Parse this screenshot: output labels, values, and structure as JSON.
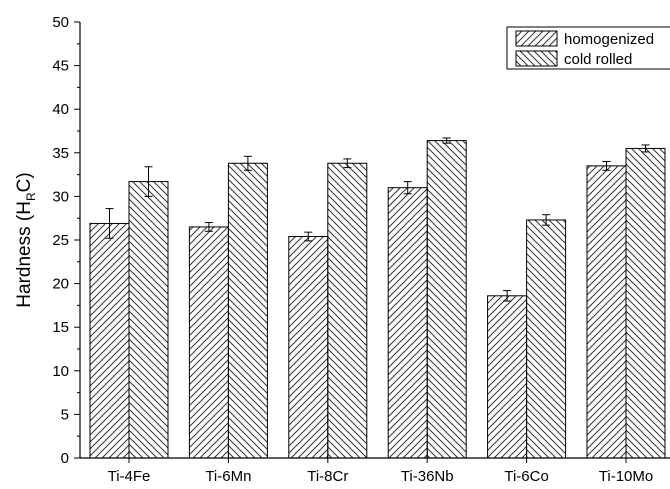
{
  "chart_data": {
    "type": "bar",
    "categories": [
      "Ti-4Fe",
      "Ti-6Mn",
      "Ti-8Cr",
      "Ti-36Nb",
      "Ti-6Co",
      "Ti-10Mo"
    ],
    "series": [
      {
        "name": "homogenized",
        "values": [
          26.9,
          26.5,
          25.4,
          31.0,
          18.6,
          33.5
        ],
        "errors": [
          1.7,
          0.5,
          0.5,
          0.7,
          0.6,
          0.5
        ],
        "pattern": "forward-hatch"
      },
      {
        "name": "cold rolled",
        "values": [
          31.7,
          33.8,
          33.8,
          36.4,
          27.3,
          35.5
        ],
        "errors": [
          1.7,
          0.8,
          0.5,
          0.3,
          0.6,
          0.4
        ],
        "pattern": "back-hatch"
      }
    ],
    "ylabel_main": "Hardness (H",
    "ylabel_sub": "R",
    "ylabel_tail": "C)",
    "xlabel": "",
    "title": "",
    "ylim": [
      0,
      50
    ],
    "yticks": [
      0,
      5,
      10,
      15,
      20,
      25,
      30,
      35,
      40,
      45,
      50
    ],
    "grid": false,
    "legend_position": "top-right",
    "colors": {
      "bar_fill": "#ffffff",
      "hatch": "#333333",
      "axis": "#000000"
    }
  }
}
